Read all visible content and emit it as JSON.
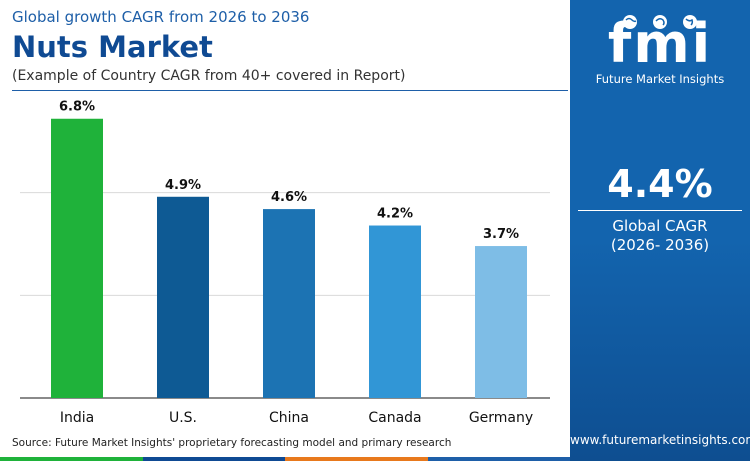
{
  "header": {
    "subtitle": "Global growth CAGR from 2026 to 2036",
    "title": "Nuts Market",
    "note": "(Example of Country CAGR from 40+ covered in Report)"
  },
  "chart_data": {
    "type": "bar",
    "categories": [
      "India",
      "U.S.",
      "China",
      "Canada",
      "Germany"
    ],
    "values": [
      6.8,
      4.9,
      4.6,
      4.2,
      3.7
    ],
    "value_labels": [
      "6.8%",
      "4.9%",
      "4.6%",
      "4.2%",
      "3.7%"
    ],
    "colors": [
      "#1fb23a",
      "#0e5a94",
      "#1c73b3",
      "#3196d6",
      "#7ebde6"
    ],
    "ylim": [
      0,
      7.5
    ],
    "grid": true,
    "title": "",
    "xlabel": "",
    "ylabel": ""
  },
  "footer": {
    "source": "Source: Future Market Insights' proprietary forecasting model and primary research",
    "strip_colors": [
      "#1fb23a",
      "#0f4a93",
      "#e8791d",
      "#1e5fa8"
    ]
  },
  "panel": {
    "logo_letters": "fmi",
    "logo_name": "Future Market Insights",
    "global_value": "4.4%",
    "global_label": "Global CAGR",
    "global_period": "(2026- 2036)",
    "website": "www.futuremarketinsights.com"
  }
}
